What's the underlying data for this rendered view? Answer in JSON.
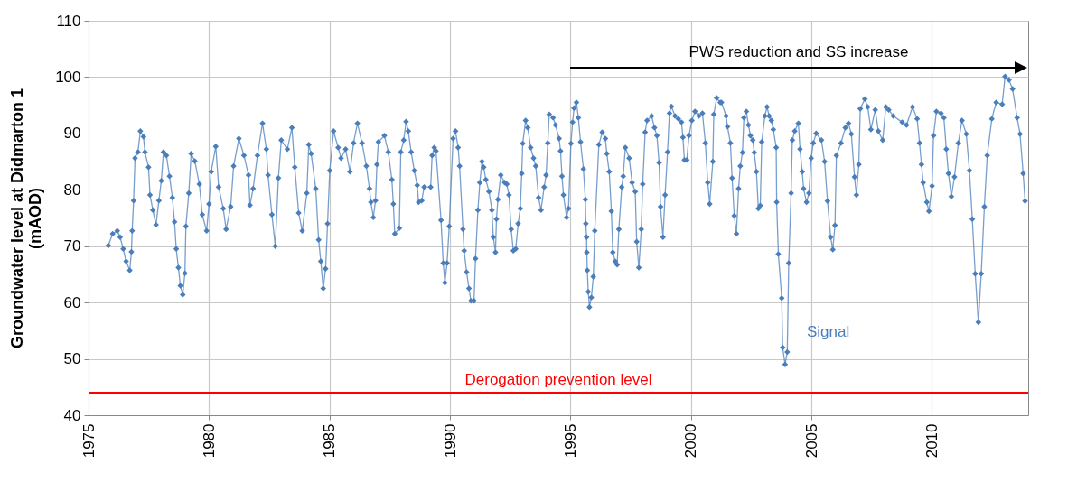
{
  "chart_data": {
    "type": "line",
    "ylabel": "Groundwater level at Didmarton 1 (mAOD)",
    "xlim": [
      1975,
      2014
    ],
    "xticks": [
      1975,
      1980,
      1985,
      1990,
      1995,
      2000,
      2005,
      2010
    ],
    "ylim": [
      40,
      110
    ],
    "yticks": [
      40,
      50,
      60,
      70,
      80,
      90,
      100,
      110
    ],
    "grid": true,
    "legend": false,
    "marker": "diamond",
    "line_style": "solid",
    "series": [
      {
        "name": "Signal",
        "color": "#4a7ebb",
        "x": [
          1975.82,
          1976.0,
          1976.19,
          1976.31,
          1976.44,
          1976.56,
          1976.71,
          1976.78,
          1976.81,
          1976.87,
          1976.93,
          1977.05,
          1977.15,
          1977.28,
          1977.34,
          1977.49,
          1977.55,
          1977.67,
          1977.8,
          1977.92,
          1978.02,
          1978.11,
          1978.23,
          1978.36,
          1978.48,
          1978.57,
          1978.64,
          1978.73,
          1978.81,
          1978.91,
          1979.0,
          1979.04,
          1979.16,
          1979.26,
          1979.41,
          1979.6,
          1979.72,
          1979.9,
          1980.0,
          1980.09,
          1980.28,
          1980.4,
          1980.59,
          1980.71,
          1980.9,
          1981.02,
          1981.24,
          1981.45,
          1981.64,
          1981.7,
          1981.83,
          1982.01,
          1982.22,
          1982.38,
          1982.45,
          1982.61,
          1982.75,
          1982.88,
          1983.0,
          1983.25,
          1983.44,
          1983.56,
          1983.72,
          1983.87,
          1984.06,
          1984.14,
          1984.24,
          1984.43,
          1984.55,
          1984.64,
          1984.74,
          1984.84,
          1984.92,
          1985.01,
          1985.17,
          1985.36,
          1985.48,
          1985.67,
          1985.85,
          1986.0,
          1986.16,
          1986.35,
          1986.53,
          1986.66,
          1986.72,
          1986.82,
          1986.91,
          1986.97,
          1987.03,
          1987.28,
          1987.44,
          1987.59,
          1987.65,
          1987.71,
          1987.9,
          1987.96,
          1988.08,
          1988.18,
          1988.27,
          1988.39,
          1988.52,
          1988.64,
          1988.7,
          1988.83,
          1988.93,
          1989.2,
          1989.26,
          1989.35,
          1989.42,
          1989.63,
          1989.72,
          1989.79,
          1989.88,
          1989.97,
          1990.13,
          1990.23,
          1990.34,
          1990.4,
          1990.54,
          1990.59,
          1990.69,
          1990.79,
          1990.87,
          1991.0,
          1991.06,
          1991.16,
          1991.24,
          1991.33,
          1991.4,
          1991.49,
          1991.62,
          1991.74,
          1991.8,
          1991.89,
          1991.93,
          1991.99,
          1992.11,
          1992.27,
          1992.36,
          1992.45,
          1992.54,
          1992.63,
          1992.73,
          1992.83,
          1992.92,
          1992.98,
          1993.02,
          1993.14,
          1993.23,
          1993.35,
          1993.47,
          1993.56,
          1993.68,
          1993.78,
          1993.91,
          1993.99,
          1994.06,
          1994.12,
          1994.28,
          1994.38,
          1994.53,
          1994.59,
          1994.65,
          1994.71,
          1994.84,
          1994.92,
          1995.02,
          1995.09,
          1995.15,
          1995.25,
          1995.33,
          1995.42,
          1995.54,
          1995.62,
          1995.64,
          1995.67,
          1995.68,
          1995.7,
          1995.74,
          1995.79,
          1995.87,
          1995.95,
          1996.01,
          1996.18,
          1996.32,
          1996.45,
          1996.51,
          1996.61,
          1996.7,
          1996.76,
          1996.86,
          1996.94,
          1997.01,
          1997.13,
          1997.19,
          1997.28,
          1997.44,
          1997.56,
          1997.69,
          1997.75,
          1997.84,
          1997.94,
          1998.0,
          1998.1,
          1998.18,
          1998.37,
          1998.49,
          1998.59,
          1998.68,
          1998.74,
          1998.84,
          1998.93,
          1999.03,
          1999.11,
          1999.19,
          1999.34,
          1999.48,
          1999.61,
          1999.67,
          1999.73,
          1999.83,
          1999.92,
          2000.04,
          2000.17,
          2000.33,
          2000.48,
          2000.6,
          2000.7,
          2000.78,
          2000.91,
          2000.95,
          2001.07,
          2001.22,
          2001.27,
          2001.46,
          2001.52,
          2001.64,
          2001.71,
          2001.8,
          2001.89,
          2001.98,
          2002.05,
          2002.14,
          2002.2,
          2002.3,
          2002.39,
          2002.47,
          2002.57,
          2002.63,
          2002.72,
          2002.8,
          2002.88,
          2002.94,
          2003.07,
          2003.16,
          2003.25,
          2003.34,
          2003.42,
          2003.54,
          2003.56,
          2003.63,
          2003.77,
          2003.81,
          2003.91,
          2004.0,
          2004.06,
          2004.16,
          2004.21,
          2004.31,
          2004.46,
          2004.53,
          2004.62,
          2004.68,
          2004.8,
          2004.9,
          2004.99,
          2005.08,
          2005.2,
          2005.42,
          2005.55,
          2005.67,
          2005.8,
          2005.89,
          2005.98,
          2006.04,
          2006.23,
          2006.41,
          2006.54,
          2006.66,
          2006.79,
          2006.87,
          2006.97,
          2007.03,
          2007.22,
          2007.34,
          2007.47,
          2007.65,
          2007.78,
          2007.96,
          2008.09,
          2008.21,
          2008.4,
          2008.77,
          2008.95,
          2009.2,
          2009.39,
          2009.49,
          2009.57,
          2009.64,
          2009.79,
          2009.88,
          2010.01,
          2010.07,
          2010.19,
          2010.38,
          2010.5,
          2010.6,
          2010.69,
          2010.81,
          2010.94,
          2011.1,
          2011.25,
          2011.43,
          2011.56,
          2011.68,
          2011.8,
          2011.93,
          2012.05,
          2012.18,
          2012.3,
          2012.49,
          2012.67,
          2012.92,
          2013.04,
          2013.2,
          2013.35,
          2013.54,
          2013.66,
          2013.79,
          2013.87
        ],
        "values": [
          70.1,
          72.2,
          72.7,
          71.6,
          69.5,
          67.3,
          65.7,
          69.0,
          72.7,
          78.1,
          85.6,
          86.7,
          90.4,
          89.4,
          86.7,
          84.0,
          79.1,
          76.4,
          73.8,
          78.1,
          81.6,
          86.7,
          86.1,
          82.4,
          78.6,
          74.3,
          69.5,
          66.2,
          63.0,
          61.4,
          65.2,
          73.5,
          79.4,
          86.4,
          85.1,
          81.0,
          75.6,
          72.7,
          77.5,
          83.2,
          87.7,
          80.5,
          76.7,
          73.0,
          77.0,
          84.2,
          89.1,
          86.1,
          82.6,
          77.3,
          80.2,
          86.1,
          91.8,
          87.2,
          82.6,
          75.6,
          70.0,
          82.1,
          88.8,
          87.2,
          91.0,
          84.0,
          75.9,
          72.7,
          79.4,
          88.0,
          86.4,
          80.2,
          71.1,
          67.3,
          62.5,
          66.0,
          74.0,
          83.4,
          90.4,
          87.5,
          85.6,
          87.2,
          83.2,
          88.3,
          91.8,
          88.3,
          84.2,
          80.2,
          77.8,
          75.1,
          78.1,
          84.5,
          88.5,
          89.6,
          86.7,
          81.8,
          77.5,
          72.2,
          73.2,
          86.7,
          88.8,
          92.1,
          90.4,
          86.7,
          83.4,
          80.8,
          77.8,
          78.1,
          80.5,
          80.5,
          86.1,
          87.5,
          86.9,
          74.6,
          67.0,
          63.5,
          67.0,
          73.5,
          89.1,
          90.4,
          87.5,
          84.2,
          73.0,
          69.2,
          65.4,
          62.5,
          60.3,
          60.3,
          67.8,
          76.4,
          81.3,
          85.0,
          84.0,
          81.8,
          79.7,
          76.4,
          71.6,
          68.9,
          74.8,
          78.3,
          82.6,
          81.3,
          81.0,
          79.1,
          73.0,
          69.2,
          69.5,
          74.0,
          76.7,
          82.9,
          88.2,
          92.3,
          91.0,
          87.5,
          85.6,
          84.2,
          78.6,
          76.4,
          80.5,
          82.6,
          88.3,
          93.4,
          92.8,
          91.5,
          89.1,
          86.9,
          82.4,
          79.1,
          75.1,
          76.7,
          88.2,
          92.0,
          94.5,
          95.5,
          92.8,
          88.5,
          83.7,
          78.3,
          74.0,
          71.6,
          68.9,
          65.7,
          61.9,
          59.2,
          60.9,
          64.6,
          72.7,
          88.0,
          90.2,
          89.1,
          86.4,
          83.2,
          76.2,
          68.9,
          67.3,
          66.7,
          73.0,
          80.5,
          82.4,
          87.5,
          85.6,
          81.3,
          79.7,
          70.8,
          66.2,
          73.0,
          81.0,
          90.2,
          92.3,
          93.1,
          91.0,
          89.6,
          84.8,
          77.0,
          71.6,
          79.1,
          86.7,
          93.6,
          94.8,
          93.1,
          92.6,
          92.0,
          89.3,
          85.3,
          85.3,
          89.6,
          92.3,
          93.9,
          93.1,
          93.6,
          88.3,
          81.3,
          77.5,
          85.0,
          93.4,
          96.3,
          95.5,
          95.5,
          93.1,
          91.2,
          88.3,
          82.1,
          75.4,
          72.2,
          80.2,
          84.2,
          86.6,
          92.8,
          93.9,
          91.5,
          89.6,
          88.8,
          86.6,
          83.2,
          76.7,
          77.2,
          88.5,
          93.1,
          94.7,
          93.1,
          92.3,
          90.7,
          87.5,
          77.8,
          68.6,
          60.8,
          52.0,
          49.0,
          51.2,
          67.0,
          79.4,
          88.8,
          90.4,
          91.8,
          87.2,
          83.2,
          80.2,
          77.8,
          79.4,
          85.6,
          88.3,
          90.0,
          88.8,
          85.0,
          78.0,
          71.6,
          69.4,
          73.7,
          86.1,
          88.3,
          91.0,
          91.8,
          89.9,
          82.3,
          79.1,
          84.5,
          94.4,
          96.1,
          94.7,
          90.7,
          94.2,
          90.4,
          88.8,
          94.7,
          94.2,
          93.1,
          92.0,
          91.5,
          94.7,
          92.6,
          88.3,
          84.5,
          81.3,
          77.8,
          76.2,
          80.7,
          89.6,
          93.9,
          93.6,
          92.8,
          87.2,
          82.9,
          78.8,
          82.3,
          88.3,
          92.3,
          89.9,
          83.4,
          74.8,
          65.1,
          56.5,
          65.1,
          77.0,
          86.1,
          92.6,
          95.5,
          95.2,
          100.1,
          99.5,
          97.9,
          92.8,
          89.9,
          82.9,
          78.0
        ]
      }
    ],
    "ref_lines": [
      {
        "axis": "y",
        "value": 44,
        "label": "Derogation prevention level",
        "color": "#ff0000"
      }
    ],
    "annotations": [
      "PWS reduction and SS increase"
    ]
  }
}
